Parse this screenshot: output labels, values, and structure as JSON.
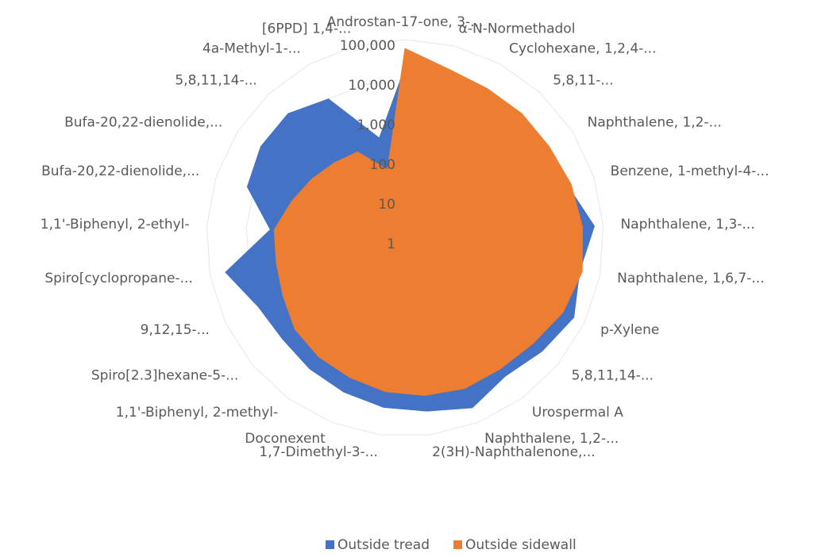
{
  "chart_data": {
    "type": "radar",
    "log_scale": true,
    "grid": true,
    "legend": "bottom",
    "categories": [
      "Androstan-17-one, 3-...",
      "α-N-Normethadol",
      "Cyclohexane, 1,2,4-...",
      "5,8,11-...",
      "Naphthalene, 1,2-...",
      "Benzene, 1-methyl-4-...",
      "Naphthalene, 1,3-...",
      "Naphthalene, 1,6,7-...",
      "p-Xylene",
      "5,8,11,14-...",
      "Urospermal A",
      "Naphthalene, 1,2-...",
      "2(3H)-Naphthalenone,...",
      "1,7-Dimethyl-3-...",
      "Doconexent",
      "1,1'-Biphenyl, 2-methyl-",
      "Spiro[2.3]hexane-5-...",
      "9,12,15-...",
      "Spiro[cyclopropane-...",
      "1,1'-Biphenyl, 2-ethyl-",
      "Bufa-20,22-dienolide,...",
      "Bufa-20,22-dienolide,...",
      "5,8,11,14-...",
      "4a-Methyl-1-...",
      "[6PPD] 1,4-..."
    ],
    "series": [
      {
        "name": "Outside tread",
        "color": "#4472c4",
        "values": [
          20000,
          10000,
          12000,
          15000,
          20000,
          20000,
          60000,
          30000,
          50000,
          30000,
          20000,
          40000,
          25000,
          20000,
          15000,
          12000,
          10000,
          12000,
          40000,
          2500,
          15000,
          20000,
          20000,
          10000,
          400
        ]
      },
      {
        "name": "Outside sidewall",
        "color": "#ed7d31",
        "values": [
          60000,
          25000,
          20000,
          20000,
          20000,
          25000,
          30000,
          35000,
          25000,
          15000,
          12000,
          12000,
          10000,
          8000,
          6000,
          5000,
          4000,
          2500,
          2000,
          2000,
          1000,
          600,
          400,
          300,
          60
        ]
      }
    ],
    "ylim": [
      1,
      100000
    ],
    "yticks": [
      1,
      10,
      100,
      {
        "value": 1000,
        "label": "1,000"
      },
      {
        "value": 10000,
        "label": "10,000"
      },
      {
        "value": 100000,
        "label": "100,000"
      }
    ]
  }
}
